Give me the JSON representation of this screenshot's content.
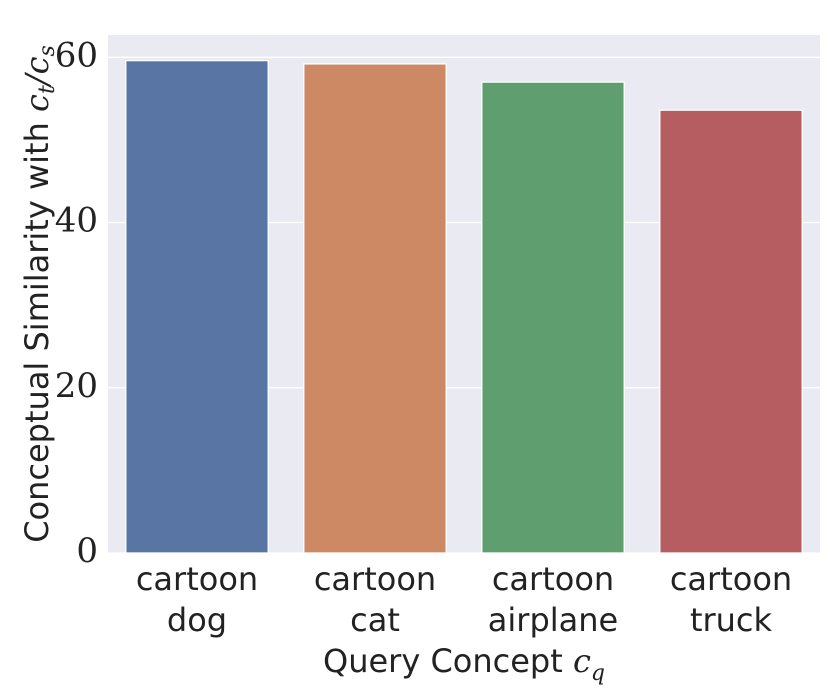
{
  "chart_data": {
    "type": "bar",
    "categories": [
      "cartoon\ndog",
      "cartoon\ncat",
      "cartoon\nairplane",
      "cartoon\ntruck"
    ],
    "values": [
      59.6,
      59.2,
      57.0,
      53.6
    ],
    "colors": [
      "#5975a4",
      "#cc8963",
      "#5f9e6e",
      "#b55d60"
    ],
    "x_label": [
      "Query Concept ",
      "c",
      "q"
    ],
    "y_label": [
      "Conceptual Similarity with ",
      "c",
      "t",
      "/c",
      "s"
    ],
    "ylim": [
      0,
      62.7
    ],
    "yticks": [
      0,
      20,
      40,
      60
    ],
    "grid": true
  }
}
